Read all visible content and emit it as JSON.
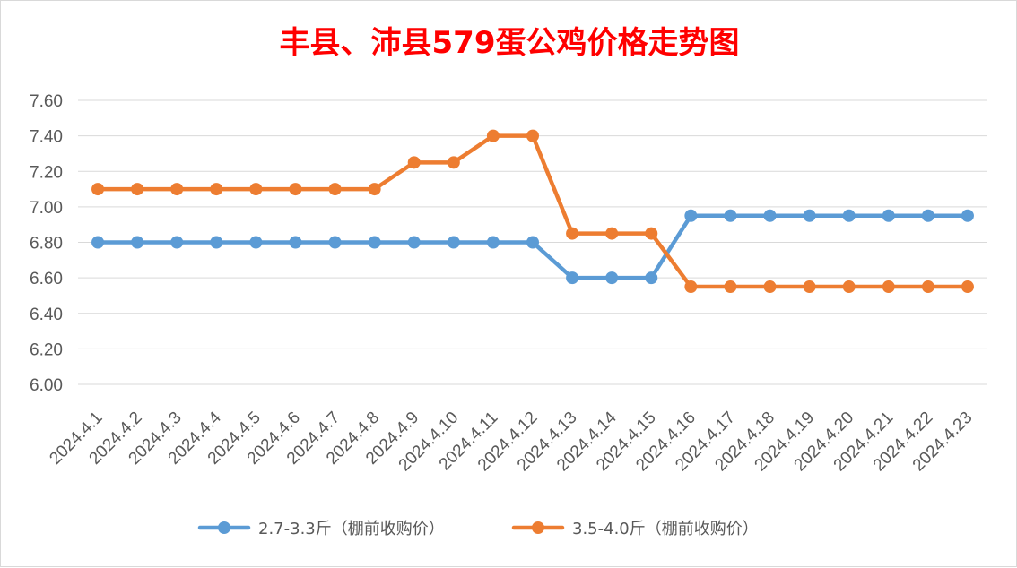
{
  "chart_data": {
    "type": "line",
    "title": "丰县、沛县579蛋公鸡价格走势图",
    "xlabel": "",
    "ylabel": "",
    "categories": [
      "2024.4.1",
      "2024.4.2",
      "2024.4.3",
      "2024.4.4",
      "2024.4.5",
      "2024.4.6",
      "2024.4.7",
      "2024.4.8",
      "2024.4.9",
      "2024.4.10",
      "2024.4.11",
      "2024.4.12",
      "2024.4.13",
      "2024.4.14",
      "2024.4.15",
      "2024.4.16",
      "2024.4.17",
      "2024.4.18",
      "2024.4.19",
      "2024.4.20",
      "2024.4.21",
      "2024.4.22",
      "2024.4.23"
    ],
    "ylim": [
      6.0,
      7.6
    ],
    "yticks": [
      "6.00",
      "6.20",
      "6.40",
      "6.60",
      "6.80",
      "7.00",
      "7.20",
      "7.40",
      "7.60"
    ],
    "grid": true,
    "legend_position": "bottom",
    "series": [
      {
        "name": "2.7-3.3斤（棚前收购价）",
        "color": "#5b9bd5",
        "values": [
          6.8,
          6.8,
          6.8,
          6.8,
          6.8,
          6.8,
          6.8,
          6.8,
          6.8,
          6.8,
          6.8,
          6.8,
          6.6,
          6.6,
          6.6,
          6.95,
          6.95,
          6.95,
          6.95,
          6.95,
          6.95,
          6.95,
          6.95
        ]
      },
      {
        "name": "3.5-4.0斤（棚前收购价）",
        "color": "#ed7d31",
        "values": [
          7.1,
          7.1,
          7.1,
          7.1,
          7.1,
          7.1,
          7.1,
          7.1,
          7.25,
          7.25,
          7.4,
          7.4,
          6.85,
          6.85,
          6.85,
          6.55,
          6.55,
          6.55,
          6.55,
          6.55,
          6.55,
          6.55,
          6.55
        ]
      }
    ]
  }
}
